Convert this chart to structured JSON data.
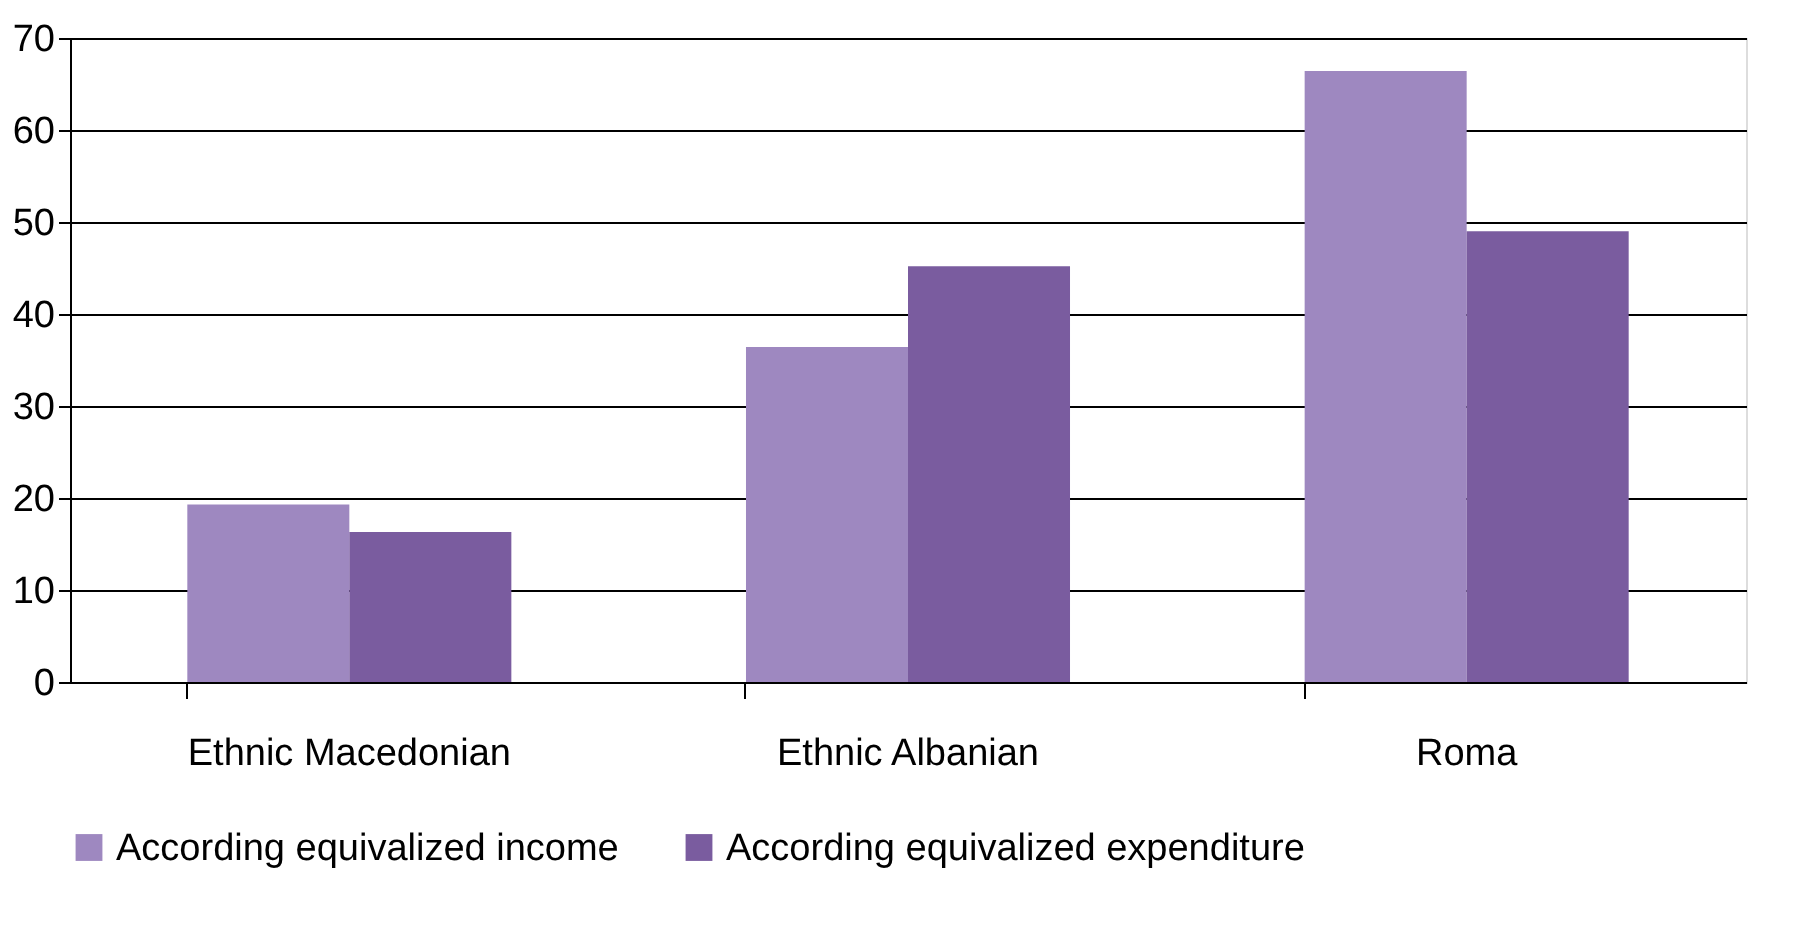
{
  "chart_data": {
    "type": "bar",
    "categories": [
      "Ethnic Macedonian",
      "Ethnic Albanian",
      "Roma"
    ],
    "series": [
      {
        "name": "According equivalized income",
        "color": "#9e88c0",
        "values": [
          19.3,
          36.4,
          66.4
        ]
      },
      {
        "name": "According equivalized expenditure",
        "color": "#7a5c9f",
        "values": [
          16.3,
          45.2,
          49.0
        ]
      }
    ],
    "ylim": [
      0,
      70
    ],
    "yticks": [
      0,
      10,
      20,
      30,
      40,
      50,
      60,
      70
    ],
    "grid": "y",
    "legend": "bottom"
  }
}
